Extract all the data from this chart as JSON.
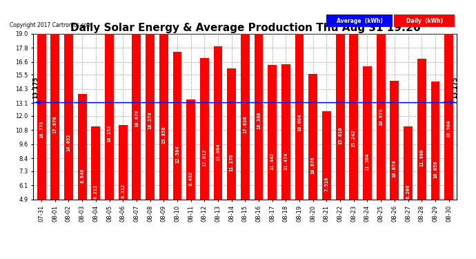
{
  "title": "Daily Solar Energy & Average Production Thu Aug 31 19:26",
  "copyright": "Copyright 2017 Cartronics.com",
  "categories": [
    "07-31",
    "08-01",
    "08-02",
    "08-03",
    "08-04",
    "08-05",
    "08-06",
    "08-07",
    "08-08",
    "08-09",
    "08-10",
    "08-11",
    "08-12",
    "08-13",
    "08-14",
    "08-15",
    "08-16",
    "08-17",
    "08-18",
    "08-19",
    "08-20",
    "08-21",
    "08-22",
    "08-23",
    "08-24",
    "08-25",
    "08-26",
    "08-27",
    "08-28",
    "08-29",
    "08-30"
  ],
  "values": [
    16.778,
    17.67,
    14.652,
    8.946,
    6.212,
    16.152,
    6.312,
    18.678,
    18.374,
    15.858,
    12.584,
    8.492,
    12.012,
    13.004,
    11.176,
    17.636,
    18.38,
    11.442,
    11.474,
    18.004,
    10.676,
    7.516,
    15.816,
    15.242,
    11.304,
    18.978,
    10.074,
    6.206,
    11.98,
    10.056,
    16.984
  ],
  "average_line": 13.175,
  "bar_color": "#ff0000",
  "average_line_color": "#0000ff",
  "background_color": "#ffffff",
  "plot_bg_color": "#ffffff",
  "grid_color": "#888888",
  "ylim_min": 4.9,
  "ylim_max": 19.0,
  "yticks": [
    4.9,
    6.1,
    7.3,
    8.4,
    9.6,
    10.8,
    12.0,
    13.1,
    14.3,
    15.5,
    16.6,
    17.8,
    19.0
  ],
  "title_fontsize": 11,
  "tick_fontsize": 6,
  "bar_value_fontsize": 5,
  "average_label": "Average  (kWh)",
  "daily_label": "Daily  (kWh)",
  "average_label_bg": "#0000ff",
  "daily_label_bg": "#ff0000",
  "label_text_color": "#ffffff",
  "avg_label_value": "13.175"
}
